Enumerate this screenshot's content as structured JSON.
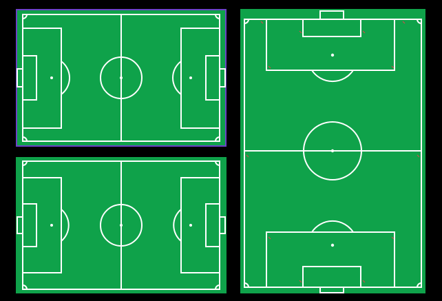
{
  "pitch_templates": {
    "items": [
      {
        "id": "horizontal-1",
        "orientation": "horizontal",
        "selected": true
      },
      {
        "id": "horizontal-2",
        "orientation": "horizontal",
        "selected": false
      },
      {
        "id": "vertical-1",
        "orientation": "vertical",
        "selected": false
      }
    ],
    "colors": {
      "background": "#000000",
      "pitch_green": "#0fa24a",
      "line_white": "#ffffff",
      "selection_outline": "#6b43c7",
      "corner_flag_marks": "#d14b4b"
    }
  }
}
